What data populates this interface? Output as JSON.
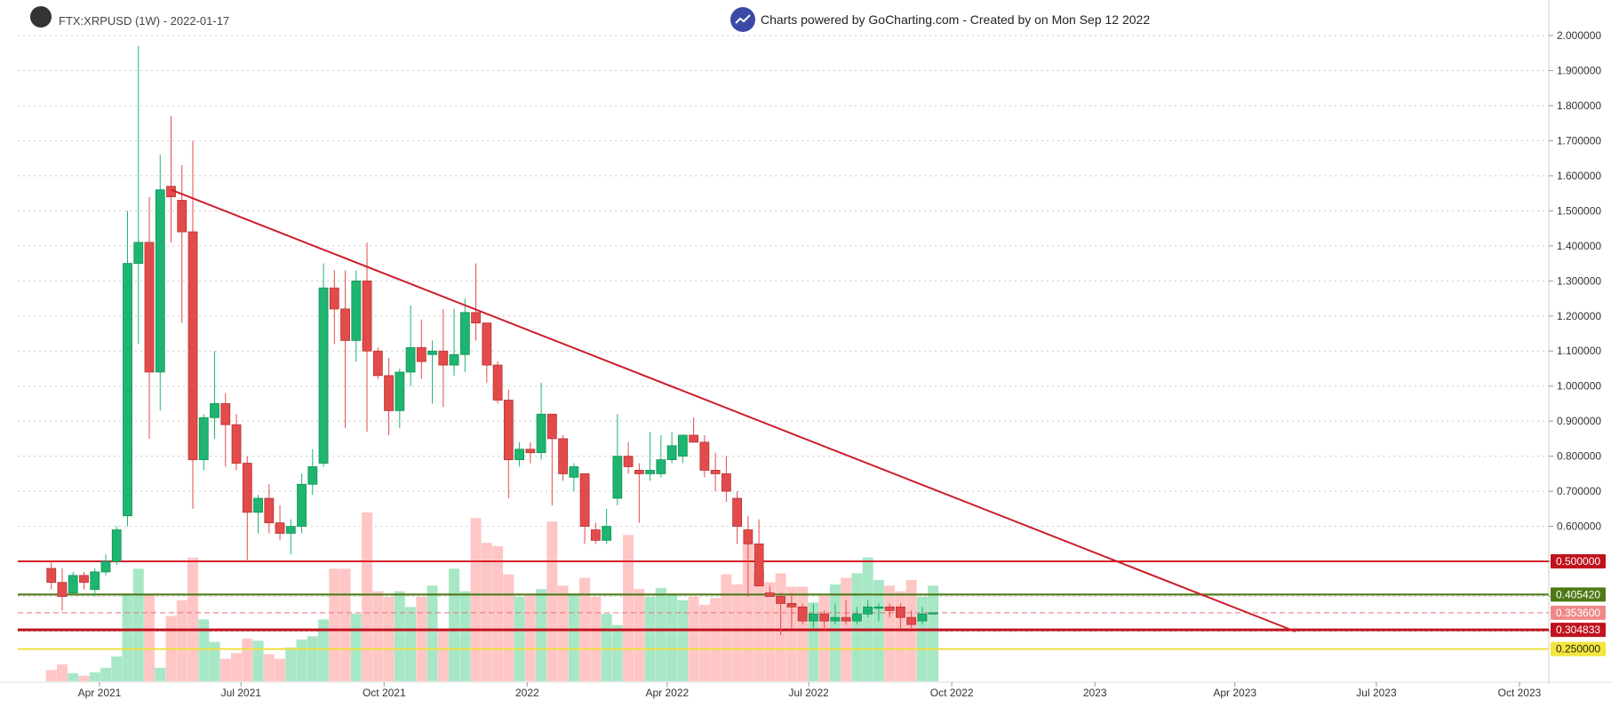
{
  "header": {
    "symbol_label": "FTX:XRPUSD (1W) - 2022-01-17",
    "credit_text": "Charts powered by GoCharting.com - Created by  on Mon Sep 12 2022"
  },
  "chart_data": {
    "type": "candlestick",
    "symbol": "FTX:XRPUSD",
    "interval": "1W",
    "ylim": [
      0.2,
      2.05
    ],
    "y_ticks": [
      "2.000000",
      "1.900000",
      "1.800000",
      "1.700000",
      "1.600000",
      "1.500000",
      "1.400000",
      "1.300000",
      "1.200000",
      "1.100000",
      "1.000000",
      "0.900000",
      "0.800000",
      "0.700000",
      "0.600000",
      "0.500000",
      "0.400000",
      "0.300000"
    ],
    "x_ticks": [
      "Apr 2021",
      "Jul 2021",
      "Oct 2021",
      "2022",
      "Apr 2022",
      "Jul 2022",
      "Oct 2022",
      "2023",
      "Apr 2023",
      "Jul 2023",
      "Oct 2023"
    ],
    "x_tick_dates": [
      "2021-04-01",
      "2021-07-01",
      "2021-10-01",
      "2022-01-01",
      "2022-04-01",
      "2022-07-01",
      "2022-10-01",
      "2023-01-01",
      "2023-04-01",
      "2023-07-01",
      "2023-10-01"
    ],
    "candles": [
      {
        "date": "2021-03-01",
        "o": 0.48,
        "h": 0.5,
        "l": 0.42,
        "c": 0.44
      },
      {
        "date": "2021-03-08",
        "o": 0.44,
        "h": 0.48,
        "l": 0.36,
        "c": 0.4
      },
      {
        "date": "2021-03-15",
        "o": 0.41,
        "h": 0.47,
        "l": 0.41,
        "c": 0.46
      },
      {
        "date": "2021-03-22",
        "o": 0.46,
        "h": 0.47,
        "l": 0.42,
        "c": 0.44
      },
      {
        "date": "2021-03-29",
        "o": 0.42,
        "h": 0.48,
        "l": 0.4,
        "c": 0.47
      },
      {
        "date": "2021-04-05",
        "o": 0.47,
        "h": 0.52,
        "l": 0.46,
        "c": 0.5
      },
      {
        "date": "2021-04-12",
        "o": 0.5,
        "h": 0.6,
        "l": 0.49,
        "c": 0.59
      },
      {
        "date": "2021-04-19",
        "o": 0.63,
        "h": 1.5,
        "l": 0.6,
        "c": 1.35
      },
      {
        "date": "2021-04-26",
        "o": 1.35,
        "h": 1.97,
        "l": 1.12,
        "c": 1.41
      },
      {
        "date": "2021-05-03",
        "o": 1.41,
        "h": 1.54,
        "l": 0.85,
        "c": 1.04
      },
      {
        "date": "2021-05-10",
        "o": 1.04,
        "h": 1.66,
        "l": 0.93,
        "c": 1.56
      },
      {
        "date": "2021-05-17",
        "o": 1.57,
        "h": 1.77,
        "l": 1.41,
        "c": 1.54
      },
      {
        "date": "2021-05-24",
        "o": 1.53,
        "h": 1.63,
        "l": 1.18,
        "c": 1.44
      },
      {
        "date": "2021-05-31",
        "o": 1.44,
        "h": 1.7,
        "l": 0.65,
        "c": 0.79
      },
      {
        "date": "2021-06-07",
        "o": 0.79,
        "h": 0.92,
        "l": 0.76,
        "c": 0.91
      },
      {
        "date": "2021-06-14",
        "o": 0.91,
        "h": 1.1,
        "l": 0.85,
        "c": 0.95
      },
      {
        "date": "2021-06-21",
        "o": 0.95,
        "h": 0.98,
        "l": 0.77,
        "c": 0.89
      },
      {
        "date": "2021-06-28",
        "o": 0.89,
        "h": 0.92,
        "l": 0.76,
        "c": 0.78
      },
      {
        "date": "2021-07-05",
        "o": 0.78,
        "h": 0.8,
        "l": 0.5,
        "c": 0.64
      },
      {
        "date": "2021-07-12",
        "o": 0.64,
        "h": 0.69,
        "l": 0.58,
        "c": 0.68
      },
      {
        "date": "2021-07-19",
        "o": 0.68,
        "h": 0.72,
        "l": 0.58,
        "c": 0.61
      },
      {
        "date": "2021-07-26",
        "o": 0.61,
        "h": 0.66,
        "l": 0.56,
        "c": 0.58
      },
      {
        "date": "2021-08-02",
        "o": 0.58,
        "h": 0.62,
        "l": 0.52,
        "c": 0.6
      },
      {
        "date": "2021-08-09",
        "o": 0.6,
        "h": 0.75,
        "l": 0.58,
        "c": 0.72
      },
      {
        "date": "2021-08-16",
        "o": 0.72,
        "h": 0.82,
        "l": 0.69,
        "c": 0.77
      },
      {
        "date": "2021-08-23",
        "o": 0.78,
        "h": 1.35,
        "l": 0.77,
        "c": 1.28
      },
      {
        "date": "2021-08-30",
        "o": 1.28,
        "h": 1.33,
        "l": 1.12,
        "c": 1.22
      },
      {
        "date": "2021-09-06",
        "o": 1.22,
        "h": 1.33,
        "l": 0.88,
        "c": 1.13
      },
      {
        "date": "2021-09-13",
        "o": 1.13,
        "h": 1.33,
        "l": 1.07,
        "c": 1.3
      },
      {
        "date": "2021-09-20",
        "o": 1.3,
        "h": 1.41,
        "l": 0.87,
        "c": 1.1
      },
      {
        "date": "2021-09-27",
        "o": 1.1,
        "h": 1.11,
        "l": 1.02,
        "c": 1.03
      },
      {
        "date": "2021-10-04",
        "o": 1.03,
        "h": 1.08,
        "l": 0.86,
        "c": 0.93
      },
      {
        "date": "2021-10-11",
        "o": 0.93,
        "h": 1.05,
        "l": 0.88,
        "c": 1.04
      },
      {
        "date": "2021-10-18",
        "o": 1.04,
        "h": 1.23,
        "l": 1.0,
        "c": 1.11
      },
      {
        "date": "2021-10-25",
        "o": 1.11,
        "h": 1.19,
        "l": 1.02,
        "c": 1.07
      },
      {
        "date": "2021-11-01",
        "o": 1.09,
        "h": 1.13,
        "l": 0.95,
        "c": 1.1
      },
      {
        "date": "2021-11-08",
        "o": 1.1,
        "h": 1.22,
        "l": 0.94,
        "c": 1.06
      },
      {
        "date": "2021-11-15",
        "o": 1.06,
        "h": 1.22,
        "l": 1.03,
        "c": 1.09
      },
      {
        "date": "2021-11-22",
        "o": 1.09,
        "h": 1.25,
        "l": 1.04,
        "c": 1.21
      },
      {
        "date": "2021-11-29",
        "o": 1.21,
        "h": 1.35,
        "l": 1.13,
        "c": 1.18
      },
      {
        "date": "2021-12-06",
        "o": 1.18,
        "h": 1.18,
        "l": 1.01,
        "c": 1.06
      },
      {
        "date": "2021-12-13",
        "o": 1.06,
        "h": 1.07,
        "l": 0.95,
        "c": 0.96
      },
      {
        "date": "2021-12-20",
        "o": 0.96,
        "h": 0.99,
        "l": 0.68,
        "c": 0.79
      },
      {
        "date": "2021-12-27",
        "o": 0.79,
        "h": 0.84,
        "l": 0.77,
        "c": 0.82
      },
      {
        "date": "2022-01-03",
        "o": 0.82,
        "h": 0.84,
        "l": 0.78,
        "c": 0.81
      },
      {
        "date": "2022-01-10",
        "o": 0.81,
        "h": 1.01,
        "l": 0.79,
        "c": 0.92
      },
      {
        "date": "2022-01-17",
        "o": 0.92,
        "h": 0.92,
        "l": 0.66,
        "c": 0.85
      },
      {
        "date": "2022-01-24",
        "o": 0.85,
        "h": 0.86,
        "l": 0.73,
        "c": 0.75
      },
      {
        "date": "2022-01-31",
        "o": 0.74,
        "h": 0.78,
        "l": 0.7,
        "c": 0.77
      },
      {
        "date": "2022-02-07",
        "o": 0.75,
        "h": 0.75,
        "l": 0.55,
        "c": 0.6
      },
      {
        "date": "2022-02-14",
        "o": 0.59,
        "h": 0.61,
        "l": 0.55,
        "c": 0.56
      },
      {
        "date": "2022-02-21",
        "o": 0.56,
        "h": 0.65,
        "l": 0.55,
        "c": 0.6
      },
      {
        "date": "2022-02-28",
        "o": 0.68,
        "h": 0.92,
        "l": 0.66,
        "c": 0.8
      },
      {
        "date": "2022-03-07",
        "o": 0.8,
        "h": 0.84,
        "l": 0.75,
        "c": 0.77
      },
      {
        "date": "2022-03-14",
        "o": 0.76,
        "h": 0.78,
        "l": 0.61,
        "c": 0.75
      },
      {
        "date": "2022-03-21",
        "o": 0.75,
        "h": 0.87,
        "l": 0.73,
        "c": 0.76
      },
      {
        "date": "2022-03-28",
        "o": 0.75,
        "h": 0.86,
        "l": 0.74,
        "c": 0.79
      },
      {
        "date": "2022-04-04",
        "o": 0.79,
        "h": 0.87,
        "l": 0.78,
        "c": 0.83
      },
      {
        "date": "2022-04-11",
        "o": 0.8,
        "h": 0.86,
        "l": 0.78,
        "c": 0.86
      },
      {
        "date": "2022-04-18",
        "o": 0.86,
        "h": 0.91,
        "l": 0.84,
        "c": 0.84
      },
      {
        "date": "2022-04-25",
        "o": 0.84,
        "h": 0.86,
        "l": 0.74,
        "c": 0.76
      },
      {
        "date": "2022-05-02",
        "o": 0.76,
        "h": 0.81,
        "l": 0.7,
        "c": 0.75
      },
      {
        "date": "2022-05-09",
        "o": 0.75,
        "h": 0.8,
        "l": 0.67,
        "c": 0.7
      },
      {
        "date": "2022-05-16",
        "o": 0.68,
        "h": 0.7,
        "l": 0.55,
        "c": 0.6
      },
      {
        "date": "2022-05-23",
        "o": 0.59,
        "h": 0.63,
        "l": 0.4,
        "c": 0.55
      },
      {
        "date": "2022-05-30",
        "o": 0.55,
        "h": 0.62,
        "l": 0.44,
        "c": 0.43
      },
      {
        "date": "2022-06-06",
        "o": 0.41,
        "h": 0.43,
        "l": 0.4,
        "c": 0.4
      },
      {
        "date": "2022-06-13",
        "o": 0.4,
        "h": 0.41,
        "l": 0.29,
        "c": 0.38
      },
      {
        "date": "2022-06-20",
        "o": 0.38,
        "h": 0.41,
        "l": 0.31,
        "c": 0.37
      },
      {
        "date": "2022-06-27",
        "o": 0.37,
        "h": 0.38,
        "l": 0.32,
        "c": 0.33
      },
      {
        "date": "2022-07-04",
        "o": 0.33,
        "h": 0.38,
        "l": 0.31,
        "c": 0.35
      },
      {
        "date": "2022-07-11",
        "o": 0.35,
        "h": 0.36,
        "l": 0.3,
        "c": 0.33
      },
      {
        "date": "2022-07-18",
        "o": 0.33,
        "h": 0.38,
        "l": 0.32,
        "c": 0.34
      },
      {
        "date": "2022-07-25",
        "o": 0.34,
        "h": 0.39,
        "l": 0.32,
        "c": 0.33
      },
      {
        "date": "2022-08-01",
        "o": 0.33,
        "h": 0.37,
        "l": 0.32,
        "c": 0.35
      },
      {
        "date": "2022-08-08",
        "o": 0.35,
        "h": 0.39,
        "l": 0.34,
        "c": 0.37
      },
      {
        "date": "2022-08-15",
        "o": 0.37,
        "h": 0.38,
        "l": 0.33,
        "c": 0.37
      },
      {
        "date": "2022-08-22",
        "o": 0.37,
        "h": 0.38,
        "l": 0.34,
        "c": 0.36
      },
      {
        "date": "2022-08-29",
        "o": 0.37,
        "h": 0.38,
        "l": 0.31,
        "c": 0.34
      },
      {
        "date": "2022-09-05",
        "o": 0.34,
        "h": 0.36,
        "l": 0.31,
        "c": 0.32
      },
      {
        "date": "2022-09-12",
        "o": 0.33,
        "h": 0.37,
        "l": 0.32,
        "c": 0.35
      },
      {
        "date": "2022-09-19",
        "o": 0.35,
        "h": 0.355,
        "l": 0.35,
        "c": 0.3536
      }
    ],
    "volume_relative": [
      0.1,
      0.15,
      0.07,
      0.05,
      0.08,
      0.12,
      0.22,
      0.78,
      1.0,
      0.77,
      0.12,
      0.58,
      0.72,
      1.1,
      0.55,
      0.35,
      0.2,
      0.25,
      0.38,
      0.36,
      0.24,
      0.2,
      0.3,
      0.37,
      0.4,
      0.55,
      1.0,
      1.0,
      0.6,
      1.5,
      0.8,
      0.75,
      0.8,
      0.66,
      0.75,
      0.85,
      0.46,
      1.0,
      0.8,
      1.45,
      1.23,
      1.2,
      0.95,
      0.75,
      0.76,
      0.82,
      1.42,
      0.85,
      0.78,
      0.92,
      0.75,
      0.6,
      0.5,
      1.3,
      0.82,
      0.75,
      0.83,
      0.78,
      0.72,
      0.75,
      0.68,
      0.74,
      0.95,
      0.86,
      1.22,
      0.98,
      0.88,
      0.96,
      0.84,
      0.84,
      0.7,
      0.76,
      0.86,
      0.92,
      0.96,
      1.1,
      0.9,
      0.85,
      0.8,
      0.9,
      0.75,
      0.85,
      0.95,
      0.18
    ],
    "horizontal_levels": [
      {
        "label": "0.500000",
        "price": 0.5,
        "line_color": null,
        "badge_color": "#c0131e"
      },
      {
        "label": "0.405420",
        "price": 0.40542,
        "line_color": "#4d7a17",
        "badge_color": "#4d7a17"
      },
      {
        "label": "0.353600",
        "price": 0.3536,
        "line_color": "#e57373",
        "badge_color": "#ef8a8a"
      },
      {
        "label": "0.304833",
        "price": 0.304833,
        "line_color": "#c0131e",
        "badge_color": "#c0131e"
      },
      {
        "label": "0.250000",
        "price": 0.25,
        "line_color": "#f0e040",
        "badge_color": "#f3e53c"
      }
    ],
    "extra_lines": [
      {
        "price": 0.5,
        "color": "#d61e28"
      },
      {
        "price": 0.40542,
        "color": "#7da33c"
      },
      {
        "price": 0.304833,
        "color": "#f0e040"
      }
    ],
    "trendline": {
      "from": {
        "date": "2021-05-17",
        "price": 1.56
      },
      "to": {
        "date": "2023-05-10",
        "price": 0.3
      },
      "color": "#cc1f2a"
    },
    "up_color": "#1db56f",
    "down_color": "#e34b4b",
    "up_volume_color": "#a7e7c6",
    "down_volume_color": "#ffc6c6",
    "grid": "horizontal-dotted",
    "price_scale": "right"
  }
}
